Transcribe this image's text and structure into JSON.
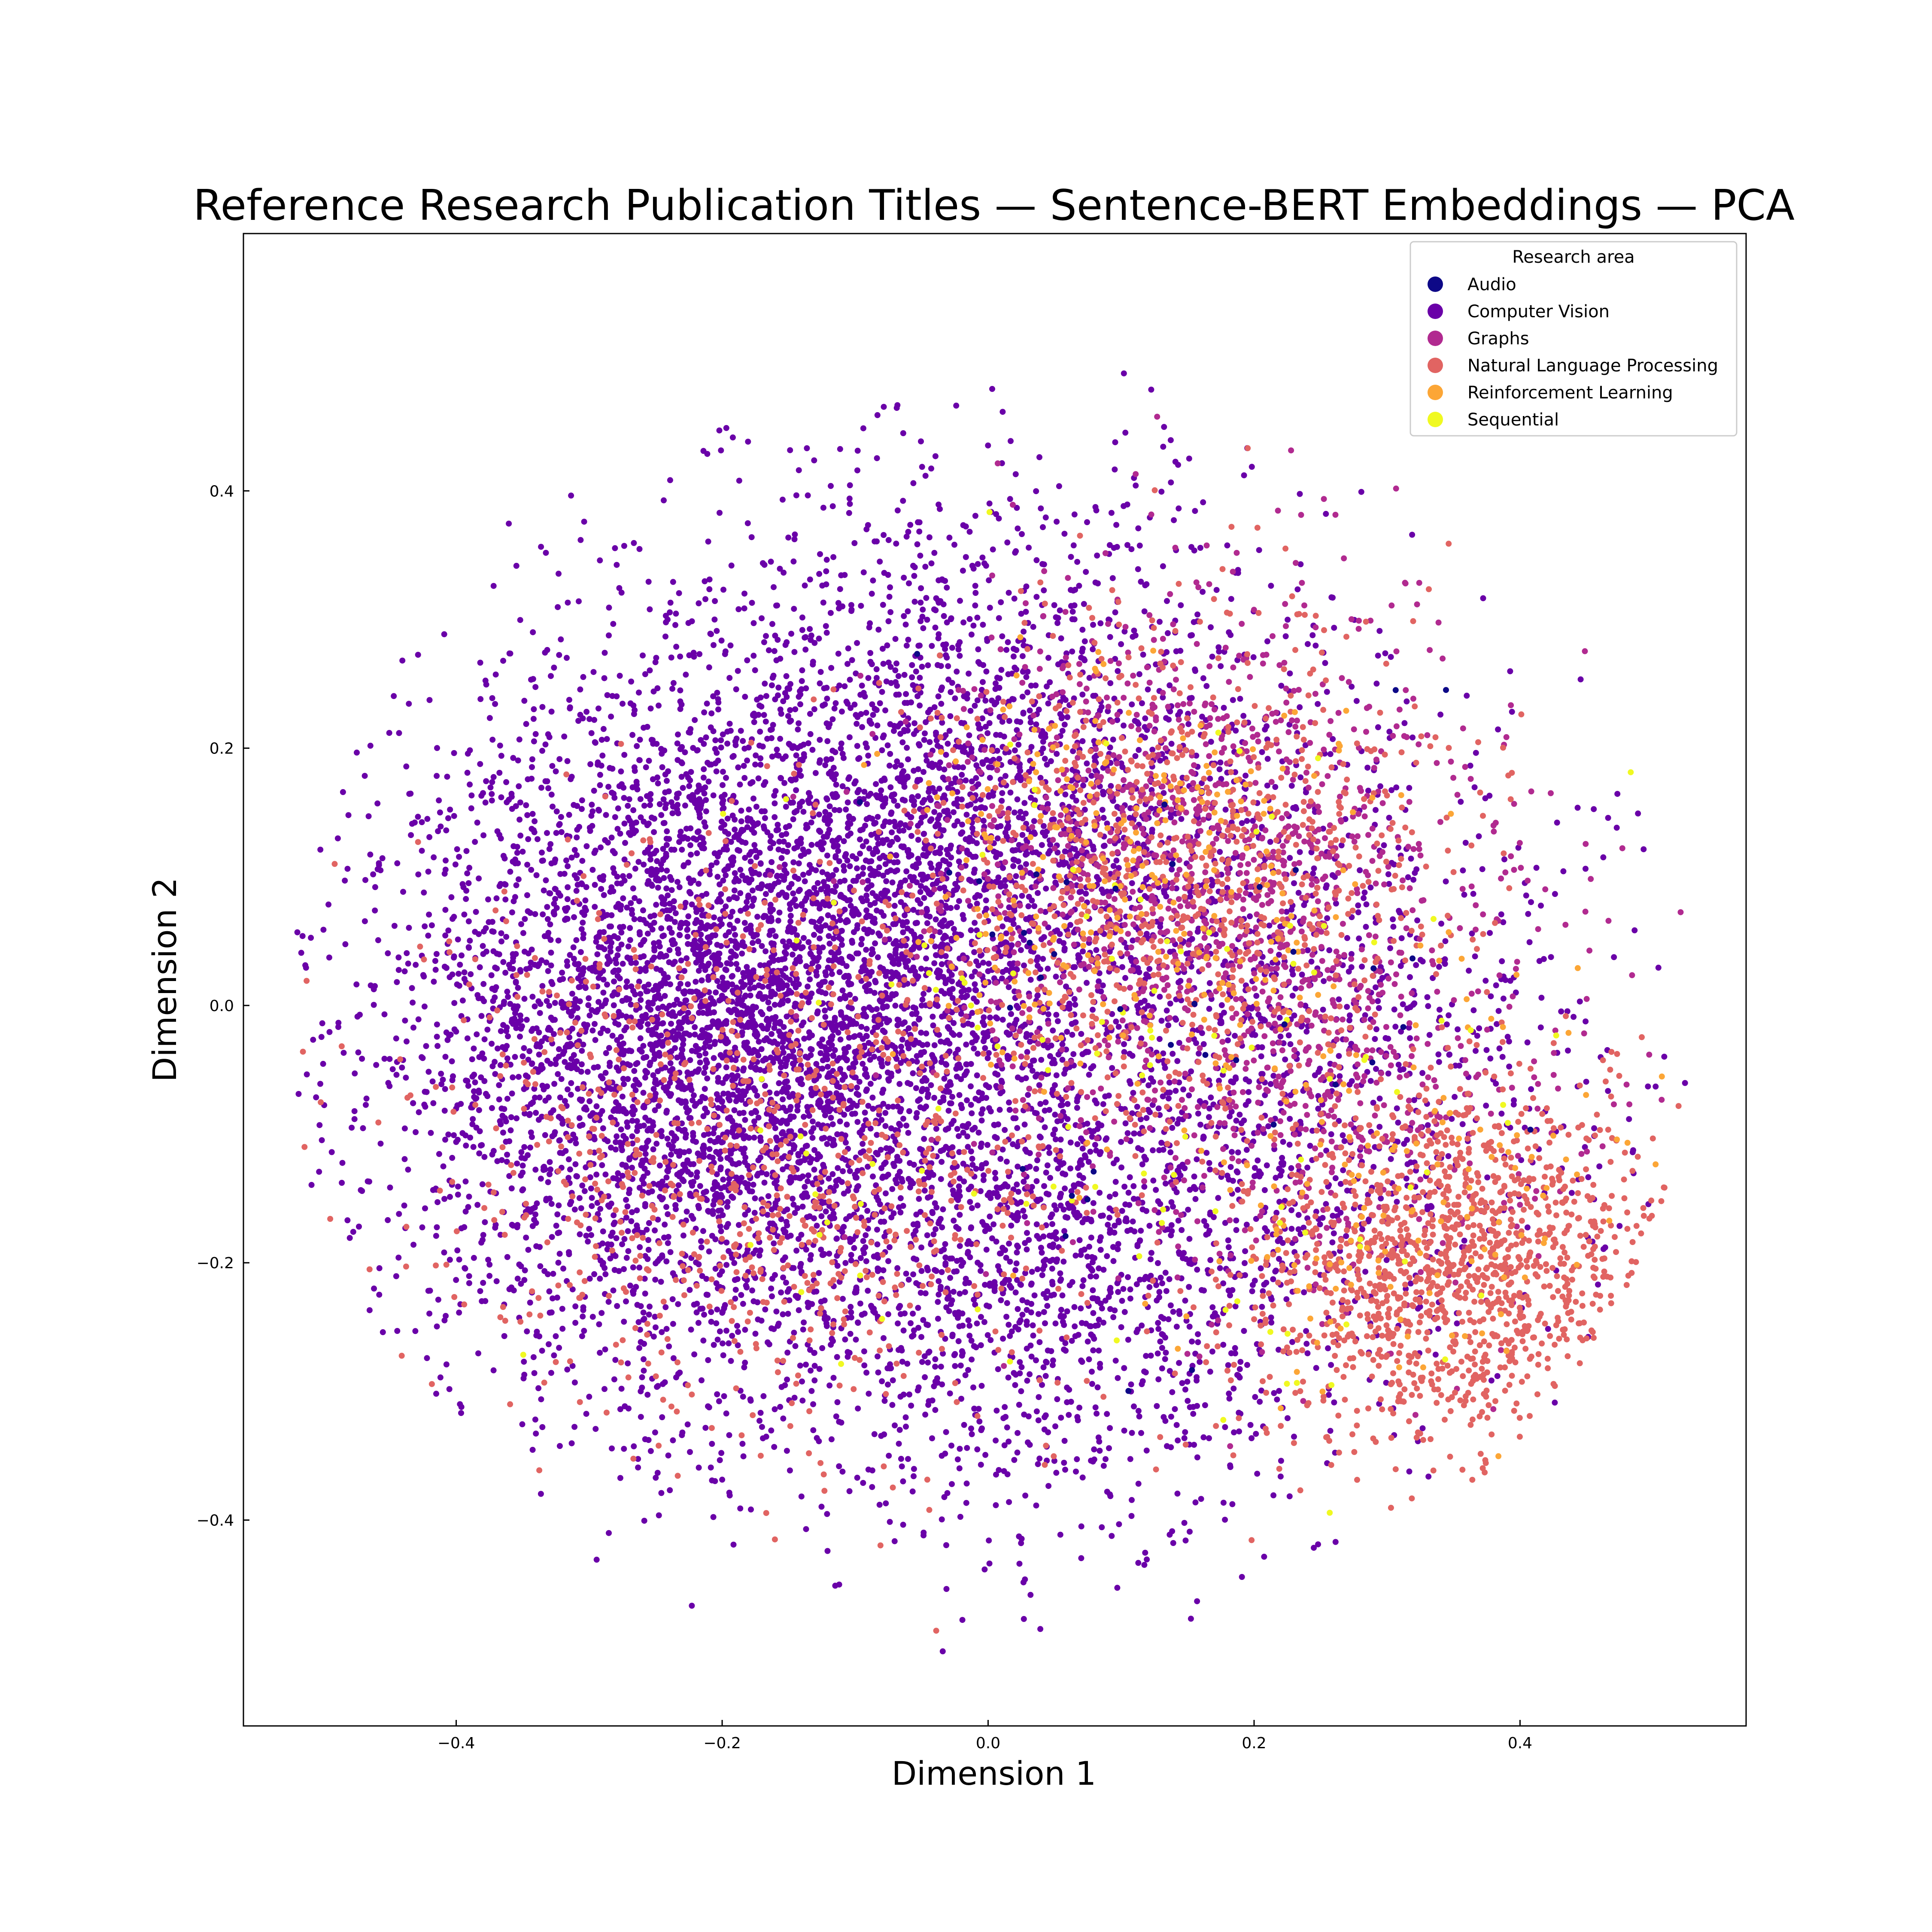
{
  "chart_data": {
    "type": "scatter",
    "title": "Reference Research Publication Titles — Sentence-BERT Embeddings — PCA",
    "xlabel": "Dimension 1",
    "ylabel": "Dimension 2",
    "xlim": [
      -0.56,
      0.57
    ],
    "ylim": [
      -0.56,
      0.6
    ],
    "xticks": [
      -0.4,
      -0.2,
      0.0,
      0.2,
      0.4
    ],
    "yticks": [
      -0.4,
      -0.2,
      0.0,
      0.2,
      0.4
    ],
    "xtick_labels": [
      "−0.4",
      "−0.2",
      "0.0",
      "0.2",
      "0.4"
    ],
    "ytick_labels": [
      "−0.4",
      "−0.2",
      "0.0",
      "0.2",
      "0.4"
    ],
    "grid": false,
    "legend": {
      "title": "Research area",
      "placement": "upper-right"
    },
    "series": [
      {
        "name": "Audio",
        "color": "#0d0887",
        "clusters": [
          {
            "cx": 0.12,
            "cy": -0.02,
            "sx": 0.12,
            "sy": 0.12,
            "n": 40
          }
        ]
      },
      {
        "name": "Computer Vision",
        "color": "#6a00a8",
        "clusters": [
          {
            "cx": -0.2,
            "cy": -0.02,
            "sx": 0.13,
            "sy": 0.14,
            "n": 5200
          },
          {
            "cx": 0.0,
            "cy": 0.15,
            "sx": 0.13,
            "sy": 0.13,
            "n": 2400
          },
          {
            "cx": 0.05,
            "cy": -0.22,
            "sx": 0.11,
            "sy": 0.1,
            "n": 1200
          },
          {
            "cx": 0.25,
            "cy": -0.05,
            "sx": 0.12,
            "sy": 0.12,
            "n": 900
          }
        ]
      },
      {
        "name": "Graphs",
        "color": "#b12a90",
        "clusters": [
          {
            "cx": 0.15,
            "cy": 0.12,
            "sx": 0.1,
            "sy": 0.1,
            "n": 1000
          },
          {
            "cx": 0.25,
            "cy": -0.05,
            "sx": 0.1,
            "sy": 0.1,
            "n": 500
          }
        ]
      },
      {
        "name": "Natural Language Processing",
        "color": "#e16462",
        "clusters": [
          {
            "cx": 0.35,
            "cy": -0.2,
            "sx": 0.08,
            "sy": 0.07,
            "n": 1300
          },
          {
            "cx": 0.15,
            "cy": 0.1,
            "sx": 0.1,
            "sy": 0.1,
            "n": 900
          },
          {
            "cx": -0.15,
            "cy": -0.1,
            "sx": 0.14,
            "sy": 0.12,
            "n": 900
          }
        ]
      },
      {
        "name": "Reinforcement Learning",
        "color": "#fca636",
        "clusters": [
          {
            "cx": 0.12,
            "cy": 0.1,
            "sx": 0.09,
            "sy": 0.09,
            "n": 280
          },
          {
            "cx": 0.3,
            "cy": -0.15,
            "sx": 0.1,
            "sy": 0.08,
            "n": 140
          }
        ]
      },
      {
        "name": "Sequential",
        "color": "#f0f921",
        "clusters": [
          {
            "cx": 0.1,
            "cy": -0.05,
            "sx": 0.16,
            "sy": 0.15,
            "n": 120
          }
        ]
      }
    ]
  }
}
